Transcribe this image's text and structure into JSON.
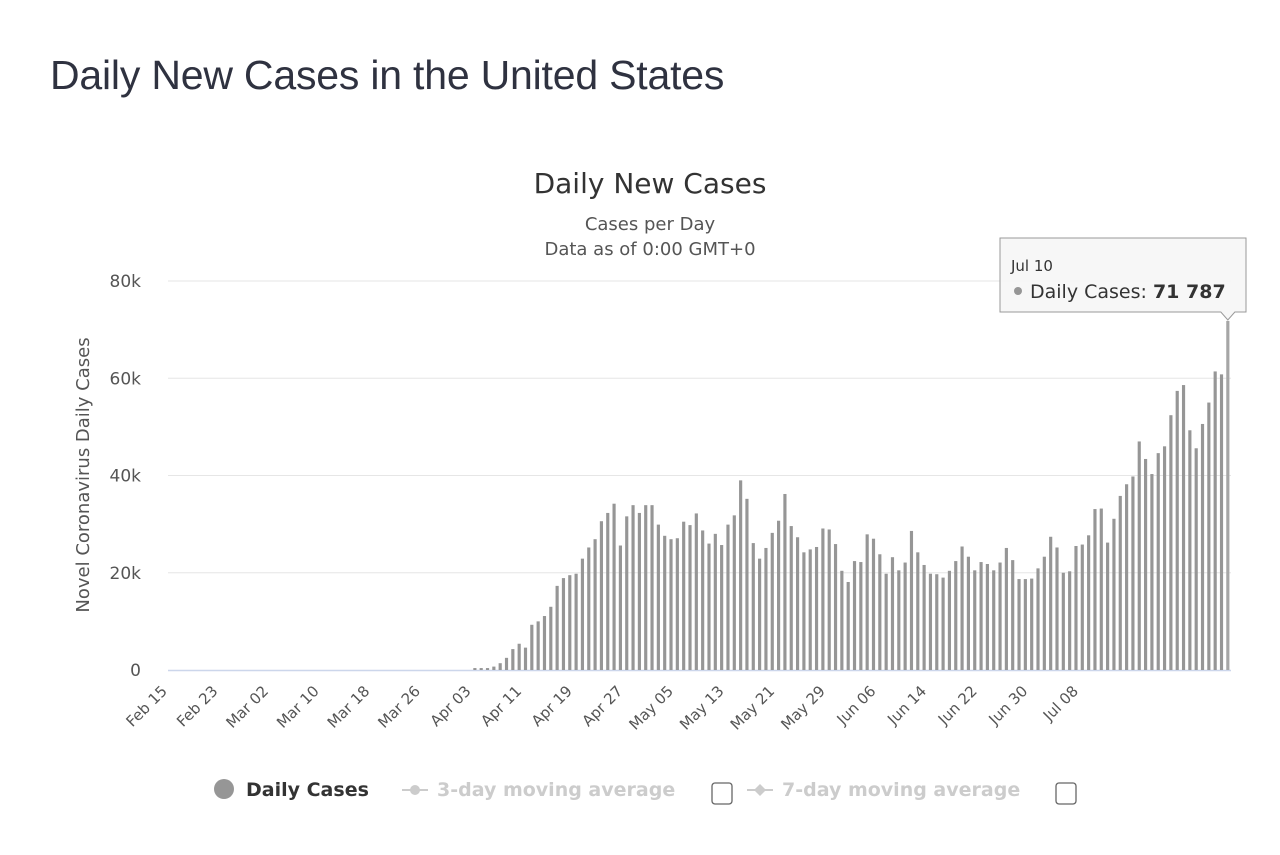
{
  "page": {
    "title": "Daily New Cases in the United States"
  },
  "chart_data": {
    "type": "bar",
    "title": "Daily New Cases",
    "subtitle_lines": [
      "Cases per Day",
      "Data as of 0:00 GMT+0"
    ],
    "ylabel": "Novel Coronavirus Daily Cases",
    "xlabel": "",
    "ylim": [
      0,
      80000
    ],
    "y_ticks": [
      0,
      20000,
      40000,
      60000,
      80000
    ],
    "y_tick_labels": [
      "0",
      "20k",
      "40k",
      "60k",
      "80k"
    ],
    "grid": true,
    "start_date": "Feb 15",
    "x_tick_labels": [
      "Feb 15",
      "Feb 23",
      "Mar 02",
      "Mar 10",
      "Mar 18",
      "Mar 26",
      "Apr 03",
      "Apr 11",
      "Apr 19",
      "Apr 27",
      "May 05",
      "May 13",
      "May 21",
      "May 29",
      "Jun 06",
      "Jun 14",
      "Jun 22",
      "Jun 30",
      "Jul 08"
    ],
    "x_tick_interval_days": 8,
    "series": [
      {
        "name": "Daily Cases",
        "color": "#969696",
        "values": [
          0,
          0,
          0,
          0,
          0,
          0,
          0,
          0,
          0,
          0,
          0,
          0,
          0,
          0,
          0,
          0,
          0,
          0,
          0,
          0,
          0,
          0,
          0,
          0,
          0,
          0,
          0,
          0,
          0,
          0,
          0,
          0,
          0,
          0,
          0,
          0,
          0,
          0,
          0,
          0,
          0,
          0,
          0,
          0,
          0,
          0,
          0,
          0,
          400,
          400,
          400,
          700,
          1400,
          2500,
          4300,
          5400,
          4600,
          9300,
          10000,
          11100,
          13000,
          17300,
          18900,
          19500,
          19800,
          22900,
          25200,
          26900,
          30600,
          32300,
          34200,
          25600,
          31600,
          33900,
          32300,
          33900,
          33900,
          29900,
          27600,
          26900,
          27100,
          30500,
          29800,
          32200,
          28700,
          26000,
          28000,
          25700,
          29900,
          31800,
          39000,
          35200,
          26100,
          22900,
          25100,
          28200,
          30700,
          36200,
          29600,
          27300,
          24200,
          24800,
          25300,
          29100,
          28900,
          25900,
          20400,
          18100,
          22400,
          22200,
          27900,
          27000,
          23800,
          19800,
          23200,
          20500,
          22100,
          28600,
          24200,
          21600,
          19800,
          19700,
          19000,
          20400,
          22400,
          25400,
          23300,
          20500,
          22200,
          21800,
          20500,
          22100,
          25100,
          22600,
          18700,
          18700,
          18800,
          20900,
          23300,
          27400,
          25200,
          20000,
          20300,
          25500,
          25800,
          27700,
          33100,
          33200,
          26200,
          31100,
          35800,
          38200,
          39800,
          47000,
          43400,
          40300,
          44600,
          46000,
          52400,
          57400,
          58600,
          49300,
          45600,
          50600,
          55000,
          61400,
          60800,
          71787
        ]
      },
      {
        "name": "3-day moving average",
        "visible": false
      },
      {
        "name": "7-day moving average",
        "visible": false
      }
    ],
    "legend": {
      "placement": "bottom-center",
      "items": [
        {
          "label": "Daily Cases",
          "active": true,
          "checkbox": false
        },
        {
          "label": "3-day moving average",
          "active": false,
          "checkbox": true,
          "checked": false
        },
        {
          "label": "7-day moving average",
          "active": false,
          "checkbox": true,
          "checked": false
        }
      ]
    },
    "tooltip": {
      "date": "Jul 10",
      "series_label": "Daily Cases: ",
      "value_text": "71 787",
      "value": 71787
    }
  }
}
